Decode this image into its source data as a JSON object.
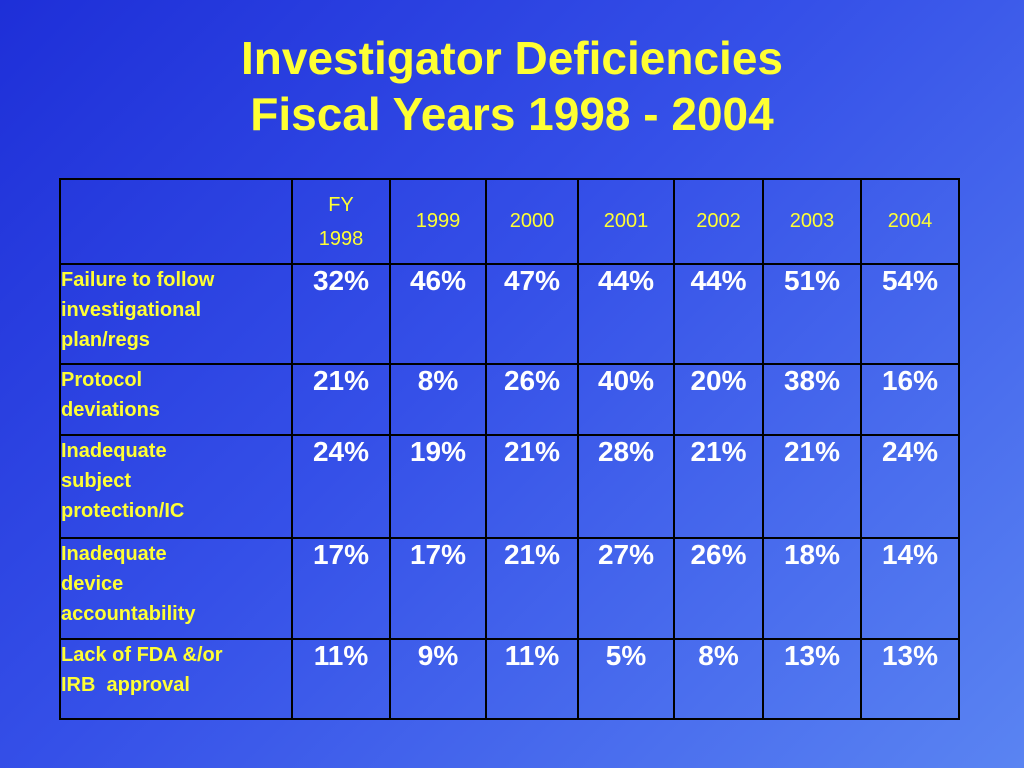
{
  "slide": {
    "title_line1": "Investigator Deficiencies",
    "title_line2": "Fiscal Years 1998 - 2004"
  },
  "table": {
    "fy_label": "FY",
    "columns": [
      "1998",
      "1999",
      "2000",
      "2001",
      "2002",
      "2003",
      "2004"
    ],
    "rows": [
      {
        "label_lines": [
          "Failure to follow",
          "investigational",
          "plan/regs"
        ],
        "values": [
          "32%",
          "46%",
          "47%",
          "44%",
          "44%",
          "51%",
          "54%"
        ]
      },
      {
        "label_lines": [
          "Protocol",
          "deviations"
        ],
        "values": [
          "21%",
          "8%",
          "26%",
          "40%",
          "20%",
          "38%",
          "16%"
        ]
      },
      {
        "label_lines": [
          "Inadequate",
          "subject",
          "protection/IC"
        ],
        "values": [
          "24%",
          "19%",
          "21%",
          "28%",
          "21%",
          "21%",
          "24%"
        ]
      },
      {
        "label_lines": [
          "Inadequate",
          "device",
          "accountability"
        ],
        "values": [
          "17%",
          "17%",
          "21%",
          "27%",
          "26%",
          "18%",
          "14%"
        ]
      },
      {
        "label_lines": [
          "Lack of FDA &/or",
          "IRB  approval"
        ],
        "values": [
          "11%",
          "9%",
          "11%",
          "5%",
          "8%",
          "13%",
          "13%"
        ]
      }
    ]
  },
  "colors": {
    "title": "#ffff33",
    "row_label": "#ffff33",
    "value_text": "#ffffff",
    "grid_lines": "#000000",
    "background_start": "#1e2fd8",
    "background_end": "#5a84f2"
  }
}
